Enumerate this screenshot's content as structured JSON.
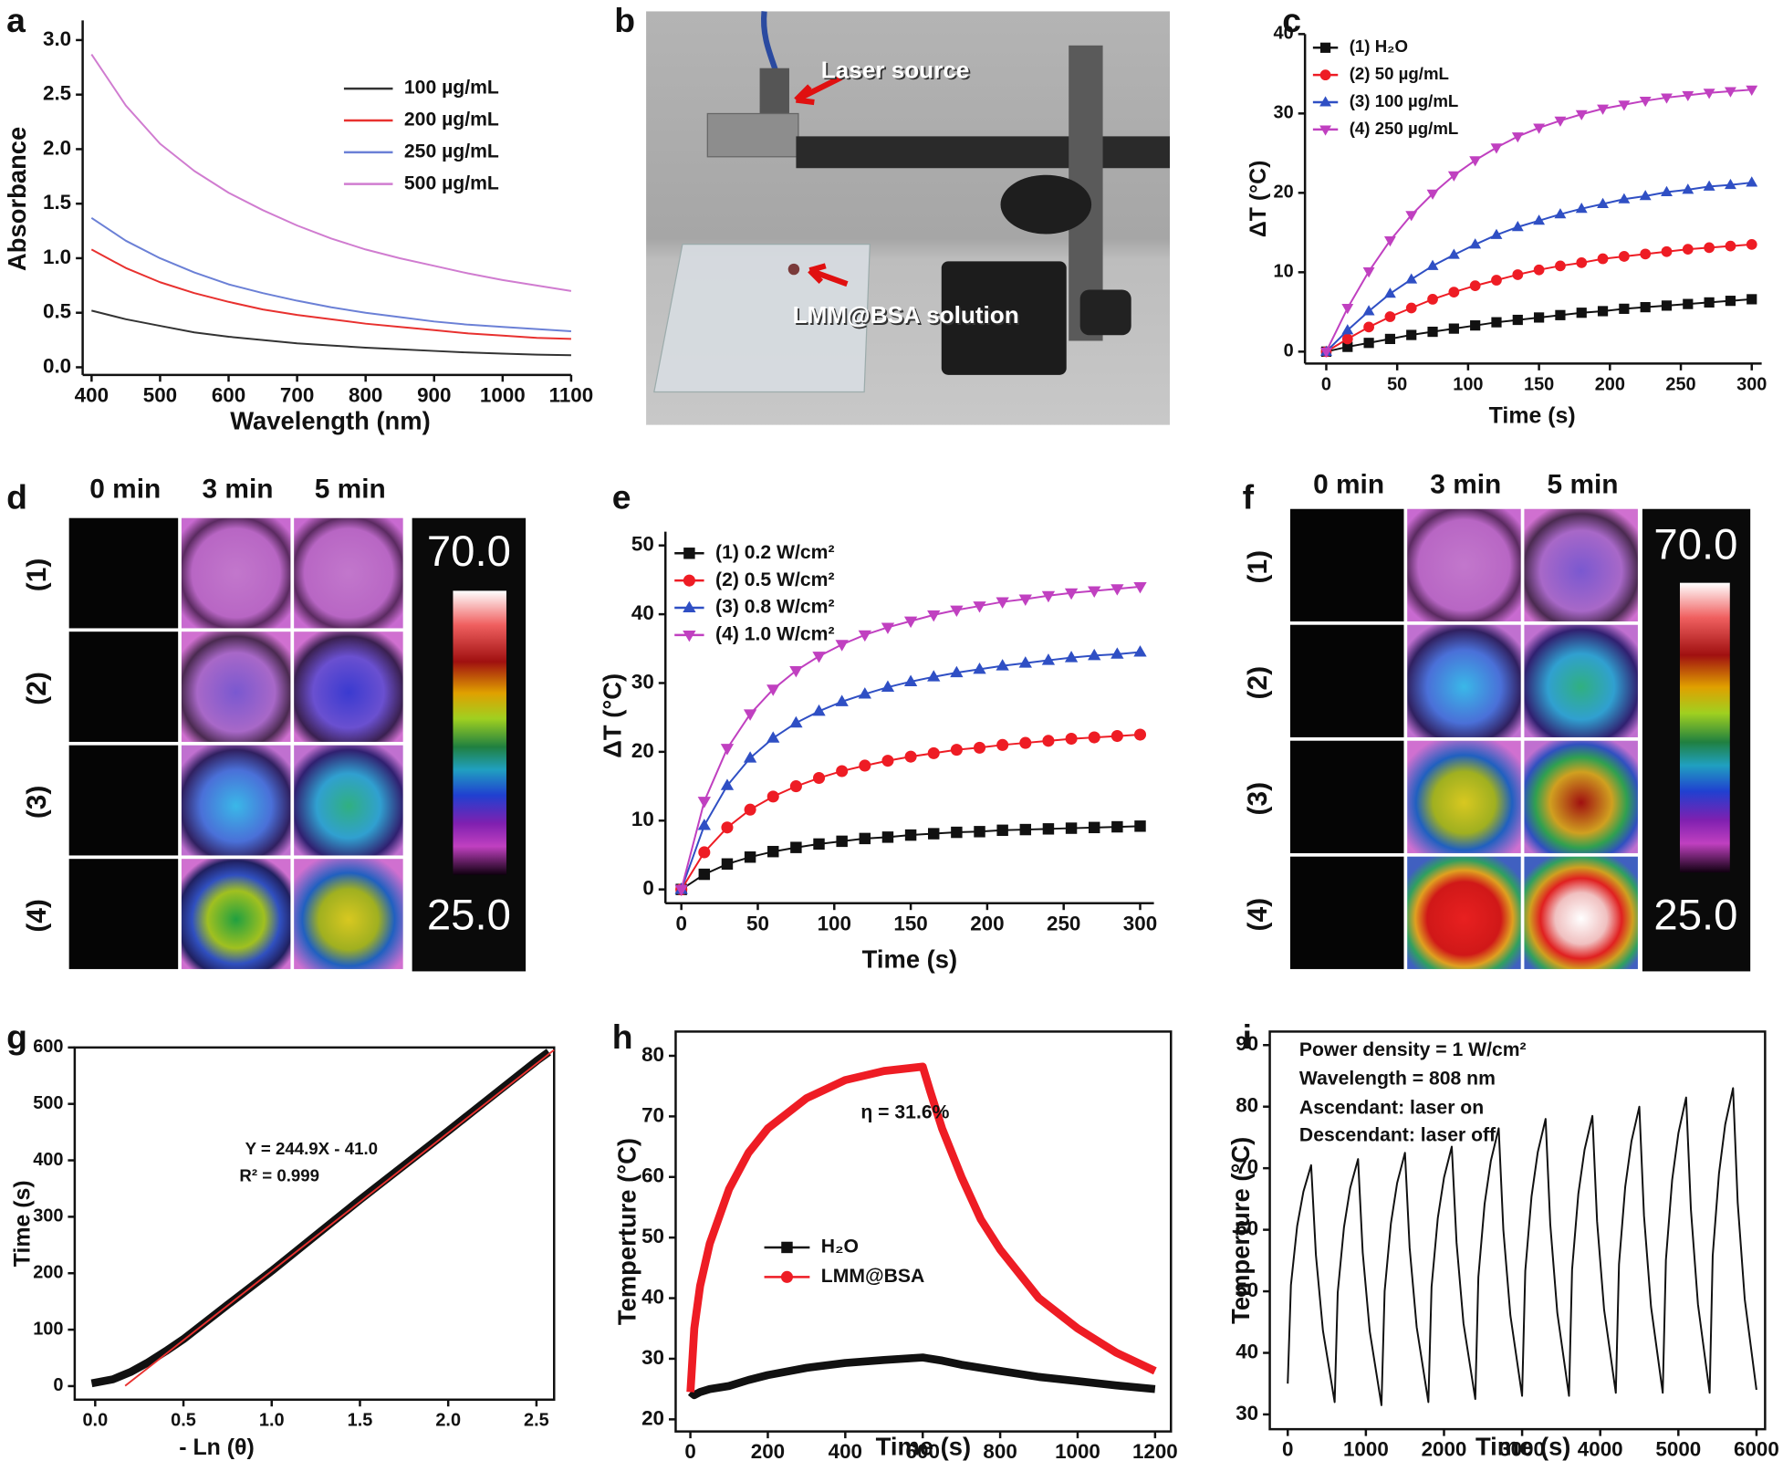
{
  "chart_data": [
    {
      "panel": "a",
      "type": "line",
      "x_label": "Wavelength (nm)",
      "y_label": "Absorbance",
      "x": [
        400,
        450,
        500,
        550,
        600,
        650,
        700,
        750,
        800,
        850,
        900,
        950,
        1000,
        1050,
        1100
      ],
      "xlim": [
        387,
        1100
      ],
      "xticks": [
        400,
        500,
        600,
        700,
        800,
        900,
        1000,
        1100
      ],
      "ylim": [
        -0.07,
        3.18
      ],
      "yticks": [
        {
          "value": 0,
          "label": "0.0"
        },
        0.5,
        {
          "value": 1,
          "label": "1.0"
        },
        1.5,
        {
          "value": 2,
          "label": "2.0"
        },
        2.5,
        {
          "value": 3,
          "label": "3.0"
        }
      ],
      "box": false,
      "legend": "upper right",
      "series": [
        {
          "name": "100 µg/mL",
          "color": "#333333",
          "values": [
            0.52,
            0.44,
            0.38,
            0.32,
            0.28,
            0.25,
            0.22,
            0.2,
            0.18,
            0.165,
            0.15,
            0.135,
            0.125,
            0.115,
            0.11
          ]
        },
        {
          "name": "200 µg/mL",
          "color": "#e8312f",
          "values": [
            1.08,
            0.91,
            0.78,
            0.68,
            0.6,
            0.53,
            0.48,
            0.44,
            0.4,
            0.37,
            0.34,
            0.31,
            0.29,
            0.27,
            0.26
          ]
        },
        {
          "name": "250 µg/mL",
          "color": "#6b80d6",
          "values": [
            1.37,
            1.16,
            1.0,
            0.87,
            0.76,
            0.68,
            0.61,
            0.55,
            0.5,
            0.46,
            0.42,
            0.39,
            0.37,
            0.35,
            0.33
          ]
        },
        {
          "name": "500 µg/mL",
          "color": "#d07cd0",
          "values": [
            2.87,
            2.4,
            2.05,
            1.8,
            1.6,
            1.44,
            1.3,
            1.18,
            1.08,
            1.0,
            0.93,
            0.86,
            0.8,
            0.75,
            0.7
          ]
        }
      ]
    },
    {
      "panel": "c",
      "type": "line",
      "x_label": "Time (s)",
      "y_label": "ΔT (°C)",
      "x": [
        0,
        15,
        30,
        45,
        60,
        75,
        90,
        105,
        120,
        135,
        150,
        165,
        180,
        195,
        210,
        225,
        240,
        255,
        270,
        285,
        300
      ],
      "xlim": [
        -15,
        307
      ],
      "xticks": [
        0,
        50,
        100,
        150,
        200,
        250,
        300
      ],
      "ylim": [
        -1.5,
        40
      ],
      "yticks": [
        0,
        10,
        20,
        30,
        40
      ],
      "box": false,
      "legend": "upper left",
      "series": [
        {
          "name": "(1) H₂O",
          "color": "#111111",
          "marker": "square",
          "values": [
            0,
            0.6,
            1.1,
            1.6,
            2.1,
            2.5,
            2.9,
            3.3,
            3.7,
            4.0,
            4.3,
            4.6,
            4.9,
            5.1,
            5.4,
            5.6,
            5.8,
            6.0,
            6.2,
            6.4,
            6.6
          ]
        },
        {
          "name": "(2) 50 µg/mL",
          "color": "#ee1c24",
          "marker": "circle",
          "values": [
            0,
            1.6,
            3.1,
            4.4,
            5.5,
            6.6,
            7.5,
            8.3,
            9.0,
            9.7,
            10.3,
            10.8,
            11.2,
            11.7,
            12.0,
            12.3,
            12.6,
            12.9,
            13.1,
            13.3,
            13.5
          ]
        },
        {
          "name": "(3) 100 µg/mL",
          "color": "#2f4fc4",
          "marker": "triangle-up",
          "values": [
            0,
            2.7,
            5.1,
            7.3,
            9.1,
            10.8,
            12.2,
            13.5,
            14.7,
            15.7,
            16.5,
            17.3,
            18.0,
            18.6,
            19.2,
            19.6,
            20.1,
            20.4,
            20.8,
            21.0,
            21.3
          ]
        },
        {
          "name": "(4) 250 µg/mL",
          "color": "#c040c0",
          "marker": "triangle-down",
          "values": [
            0,
            5.5,
            10.1,
            14.0,
            17.2,
            19.9,
            22.2,
            24.1,
            25.7,
            27.1,
            28.2,
            29.1,
            29.9,
            30.6,
            31.1,
            31.6,
            32.0,
            32.3,
            32.6,
            32.8,
            33.0
          ]
        }
      ]
    },
    {
      "panel": "e",
      "type": "line",
      "x_label": "Time (s)",
      "y_label": "ΔT (°C)",
      "x": [
        0,
        15,
        30,
        45,
        60,
        75,
        90,
        105,
        120,
        135,
        150,
        165,
        180,
        195,
        210,
        225,
        240,
        255,
        270,
        285,
        300
      ],
      "xlim": [
        -10.4,
        309
      ],
      "xticks": [
        0,
        50,
        100,
        150,
        200,
        250,
        300
      ],
      "ylim": [
        -2,
        52
      ],
      "yticks": [
        0,
        10,
        20,
        30,
        40,
        50
      ],
      "box": false,
      "legend": "upper left",
      "series": [
        {
          "name": "(1) 0.2 W/cm²",
          "color": "#111111",
          "marker": "square",
          "values": [
            0,
            2.2,
            3.7,
            4.7,
            5.5,
            6.1,
            6.6,
            7.0,
            7.4,
            7.6,
            7.9,
            8.1,
            8.3,
            8.4,
            8.6,
            8.7,
            8.8,
            8.9,
            9.0,
            9.1,
            9.2
          ]
        },
        {
          "name": "(2) 0.5 W/cm²",
          "color": "#ee1c24",
          "marker": "circle",
          "values": [
            0,
            5.4,
            9.0,
            11.6,
            13.5,
            15.0,
            16.2,
            17.2,
            18.0,
            18.7,
            19.3,
            19.8,
            20.3,
            20.6,
            21.0,
            21.3,
            21.6,
            21.9,
            22.1,
            22.3,
            22.5
          ]
        },
        {
          "name": "(3) 0.8 W/cm²",
          "color": "#2f4fc4",
          "marker": "triangle-up",
          "values": [
            0,
            9.3,
            15.1,
            19.1,
            22.0,
            24.2,
            25.9,
            27.3,
            28.4,
            29.4,
            30.2,
            30.9,
            31.5,
            32.0,
            32.5,
            32.9,
            33.3,
            33.7,
            34.0,
            34.2,
            34.5
          ]
        },
        {
          "name": "(4) 1.0 W/cm²",
          "color": "#c040c0",
          "marker": "triangle-down",
          "values": [
            0,
            12.8,
            20.5,
            25.5,
            29.1,
            31.8,
            33.9,
            35.6,
            37.0,
            38.1,
            39.0,
            39.9,
            40.6,
            41.2,
            41.8,
            42.2,
            42.7,
            43.1,
            43.4,
            43.7,
            44.0
          ]
        }
      ]
    },
    {
      "panel": "g",
      "type": "line",
      "x_label": "- Ln (θ)",
      "y_label": "Time (s)",
      "xlim": [
        -0.116,
        2.6
      ],
      "xticks": [
        {
          "value": 0,
          "label": "0.0"
        },
        0.5,
        {
          "value": 1,
          "label": "1.0"
        },
        1.5,
        {
          "value": 2,
          "label": "2.0"
        },
        2.5
      ],
      "ylim": [
        -24,
        600
      ],
      "yticks": [
        0,
        100,
        200,
        300,
        400,
        500,
        600
      ],
      "box": true,
      "annotations": [
        "Y = 244.9X - 41.0",
        "R² = 0.999"
      ],
      "series": [
        {
          "color": "#111111",
          "x": [
            -0.02,
            0.1,
            0.2,
            0.3,
            0.4,
            0.5,
            0.75,
            1.0,
            1.25,
            1.5,
            1.75,
            2.0,
            2.25,
            2.5,
            2.57
          ],
          "values": [
            5,
            12,
            25,
            42,
            62,
            83,
            144,
            204,
            267,
            330,
            391,
            452,
            514,
            576,
            592
          ]
        },
        {
          "color": "#e8312f",
          "x": [
            0.17,
            2.6
          ],
          "values": [
            0.6,
            595.7
          ]
        }
      ]
    },
    {
      "panel": "h",
      "type": "line",
      "x_label": "Time (s)",
      "y_label": "Temperture (°C)",
      "x": [
        0,
        10,
        25,
        50,
        100,
        150,
        200,
        300,
        400,
        500,
        600,
        620,
        650,
        700,
        750,
        800,
        900,
        1000,
        1100,
        1200
      ],
      "xlim": [
        -38,
        1241
      ],
      "xticks": [
        0,
        200,
        400,
        600,
        800,
        1000,
        1200
      ],
      "ylim": [
        18,
        84
      ],
      "yticks": [
        20,
        30,
        40,
        50,
        60,
        70,
        80
      ],
      "box": true,
      "legend": "center left",
      "annotations": [
        "η = 31.6%"
      ],
      "series": [
        {
          "name": "H₂O",
          "color": "#111111",
          "marker": "square",
          "values": [
            24.5,
            24,
            24.5,
            25,
            25.5,
            26.5,
            27.3,
            28.5,
            29.3,
            29.8,
            30.2,
            30,
            29.7,
            29,
            28.5,
            28,
            27,
            26.3,
            25.6,
            25
          ]
        },
        {
          "name": "LMM@BSA",
          "color": "#ee1c24",
          "marker": "circle",
          "values": [
            24.5,
            35,
            42,
            49,
            58,
            64,
            68,
            73,
            76,
            77.5,
            78.2,
            74,
            68,
            60,
            53,
            48,
            40,
            35,
            31,
            28
          ]
        }
      ]
    },
    {
      "panel": "i",
      "type": "line",
      "x_label": "Time (s)",
      "y_label": "Temperture (°C)",
      "x": [
        0,
        40,
        120,
        200,
        300,
        360,
        450,
        600,
        640,
        720,
        800,
        900,
        960,
        1050,
        1200,
        1240,
        1320,
        1400,
        1500,
        1560,
        1650,
        1800,
        1840,
        1920,
        2000,
        2100,
        2160,
        2250,
        2400,
        2440,
        2520,
        2600,
        2700,
        2760,
        2850,
        3000,
        3040,
        3120,
        3200,
        3300,
        3360,
        3450,
        3600,
        3640,
        3720,
        3800,
        3900,
        3960,
        4050,
        4200,
        4240,
        4320,
        4400,
        4500,
        4560,
        4650,
        4800,
        4840,
        4920,
        5000,
        5100,
        5160,
        5250,
        5400,
        5440,
        5520,
        5600,
        5700,
        5760,
        5850,
        6000
      ],
      "xlim": [
        -230,
        6110
      ],
      "xticks": [
        0,
        1000,
        2000,
        3000,
        4000,
        5000,
        6000
      ],
      "ylim": [
        27.6,
        92.2
      ],
      "yticks": [
        30,
        40,
        50,
        60,
        70,
        80,
        90
      ],
      "box": true,
      "annotations": [
        "Power density = 1 W/cm²",
        "Wavelength = 808 nm",
        "Ascendant: laser on",
        "Descendant: laser off"
      ],
      "series": [
        {
          "color": "#111111",
          "values": [
            35,
            51.0,
            60.6,
            66.2,
            70.5,
            55.9,
            43.6,
            32,
            49.8,
            60.4,
            66.8,
            71.5,
            56.3,
            43.5,
            31.5,
            50.0,
            61.0,
            67.6,
            72.5,
            57.1,
            44.2,
            32,
            50.7,
            61.9,
            68.5,
            73.5,
            57.9,
            44.8,
            32.5,
            52.3,
            64.2,
            71.2,
            76.5,
            60.0,
            46.1,
            33,
            53.3,
            65.4,
            72.6,
            78,
            60.9,
            46.5,
            33,
            53.5,
            65.8,
            73.0,
            78.5,
            61.4,
            47.0,
            33.5,
            54.4,
            67.0,
            74.4,
            80,
            62.3,
            47.5,
            33.5,
            55.1,
            68.1,
            75.7,
            81.5,
            63.3,
            47.9,
            33.5,
            55.8,
            69.1,
            77.1,
            83,
            64.4,
            48.7,
            34
          ]
        }
      ]
    }
  ],
  "photo": {
    "panel": "b",
    "labels": [
      "Laser source",
      "LMM@BSA solution"
    ]
  },
  "thermal_maps": [
    {
      "panel": "d",
      "columns": [
        "0 min",
        "3 min",
        "5 min"
      ],
      "rows": [
        "(1)",
        "(2)",
        "(3)",
        "(4)"
      ],
      "scale": [
        "70.0",
        "25.0"
      ]
    },
    {
      "panel": "f",
      "columns": [
        "0 min",
        "3 min",
        "5 min"
      ],
      "rows": [
        "(1)",
        "(2)",
        "(3)",
        "(4)"
      ],
      "scale": [
        "70.0",
        "25.0"
      ]
    }
  ]
}
